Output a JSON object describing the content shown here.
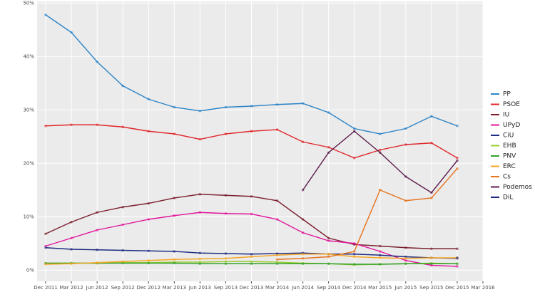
{
  "chart_data": {
    "type": "line",
    "x": [
      "2011-12",
      "2012-03",
      "2012-06",
      "2012-09",
      "2012-12",
      "2013-03",
      "2013-06",
      "2013-09",
      "2013-12",
      "2014-03",
      "2014-06",
      "2014-09",
      "2014-12",
      "2015-03",
      "2015-06",
      "2015-09",
      "2015-12"
    ],
    "series": [
      {
        "name": "PP",
        "color": "#2b83c6",
        "values": [
          47.8,
          44.5,
          39,
          34.5,
          32,
          30.5,
          29.8,
          30.5,
          30.7,
          31,
          31.2,
          29.5,
          26.5,
          25.5,
          26.5,
          28.8,
          27
        ]
      },
      {
        "name": "PSOE",
        "color": "#e0262a",
        "values": [
          27,
          27.2,
          27.2,
          26.8,
          26,
          25.5,
          24.5,
          25.5,
          26,
          26.3,
          24,
          23,
          21,
          22.5,
          23.5,
          23.8,
          21
        ]
      },
      {
        "name": "IU",
        "color": "#7b1f2e",
        "values": [
          6.8,
          9,
          10.8,
          11.8,
          12.5,
          13.5,
          14.2,
          14,
          13.8,
          13,
          9.5,
          6,
          4.8,
          4.5,
          4.2,
          4,
          4
        ]
      },
      {
        "name": "UPyD",
        "color": "#e0159c",
        "values": [
          4.5,
          6,
          7.5,
          8.5,
          9.5,
          10.2,
          10.8,
          10.6,
          10.5,
          9.5,
          7,
          5.5,
          5,
          3.5,
          1.8,
          0.9,
          0.7
        ]
      },
      {
        "name": "CiU",
        "color": "#1d2b80",
        "values": [
          4.2,
          3.9,
          3.8,
          3.7,
          3.6,
          3.5,
          3.2,
          3.1,
          3,
          3.1,
          3.2,
          3,
          3,
          2.8,
          2.5,
          2.3,
          2.2
        ]
      },
      {
        "name": "EHB",
        "color": "#9acd32",
        "values": [
          1.3,
          1.3,
          1.3,
          1.4,
          1.4,
          1.5,
          1.5,
          1.6,
          1.6,
          1.5,
          1.3,
          1.2,
          1,
          1.1,
          1.2,
          1.3,
          1.2
        ]
      },
      {
        "name": "PNV",
        "color": "#33a02c",
        "values": [
          1.3,
          1.3,
          1.3,
          1.3,
          1.3,
          1.3,
          1.2,
          1.2,
          1.2,
          1.2,
          1.2,
          1.2,
          1.1,
          1.1,
          1.2,
          1.2,
          1.2
        ]
      },
      {
        "name": "ERC",
        "color": "#f5a623",
        "values": [
          1.1,
          1.2,
          1.4,
          1.6,
          1.8,
          2,
          2.1,
          2.2,
          2.5,
          2.8,
          3,
          3,
          2.5,
          2.3,
          2.2,
          2.3,
          2.3
        ]
      },
      {
        "name": "Cs",
        "color": "#e6731d",
        "values": [
          null,
          null,
          null,
          null,
          null,
          null,
          null,
          null,
          null,
          2,
          2.2,
          2.5,
          3.5,
          15,
          13,
          13.5,
          19
        ]
      },
      {
        "name": "Podemos",
        "color": "#5b1a4a",
        "values": [
          null,
          null,
          null,
          null,
          null,
          null,
          null,
          null,
          null,
          null,
          15,
          22,
          26,
          22,
          17.5,
          14.5,
          20.5
        ]
      },
      {
        "name": "DiL",
        "color": "#1a237e",
        "values": [
          null,
          null,
          null,
          null,
          null,
          null,
          null,
          null,
          null,
          null,
          null,
          null,
          null,
          null,
          null,
          null,
          2.3
        ]
      }
    ],
    "xlim": [
      "2011-11",
      "2016-03"
    ],
    "xticks": [
      {
        "value": "2011-12",
        "label": "Dec 2011"
      },
      {
        "value": "2012-03",
        "label": "Mar 2012"
      },
      {
        "value": "2012-06",
        "label": "Jun 2012"
      },
      {
        "value": "2012-09",
        "label": "Sep 2012"
      },
      {
        "value": "2012-12",
        "label": "Dec 2012"
      },
      {
        "value": "2013-03",
        "label": "Mar 2013"
      },
      {
        "value": "2013-06",
        "label": "Jun 2013"
      },
      {
        "value": "2013-09",
        "label": "Sep 2013"
      },
      {
        "value": "2013-12",
        "label": "Dec 2013"
      },
      {
        "value": "2014-03",
        "label": "Mar 2014"
      },
      {
        "value": "2014-06",
        "label": "Jun 2014"
      },
      {
        "value": "2014-09",
        "label": "Sep 2014"
      },
      {
        "value": "2014-12",
        "label": "Dec 2014"
      },
      {
        "value": "2015-03",
        "label": "Mar 2015"
      },
      {
        "value": "2015-06",
        "label": "Jun 2015"
      },
      {
        "value": "2015-09",
        "label": "Sep 2015"
      },
      {
        "value": "2015-12",
        "label": "Dec 2015"
      },
      {
        "value": "2016-03",
        "label": "Mar 2016"
      }
    ],
    "ylim": [
      -2.1,
      50.3
    ],
    "yticks": [
      {
        "value": 0,
        "label": "0%"
      },
      {
        "value": 10,
        "label": "10%"
      },
      {
        "value": 20,
        "label": "20%"
      },
      {
        "value": 30,
        "label": "30%"
      },
      {
        "value": 40,
        "label": "40%"
      },
      {
        "value": 50,
        "label": "50%"
      }
    ],
    "grid": true
  }
}
